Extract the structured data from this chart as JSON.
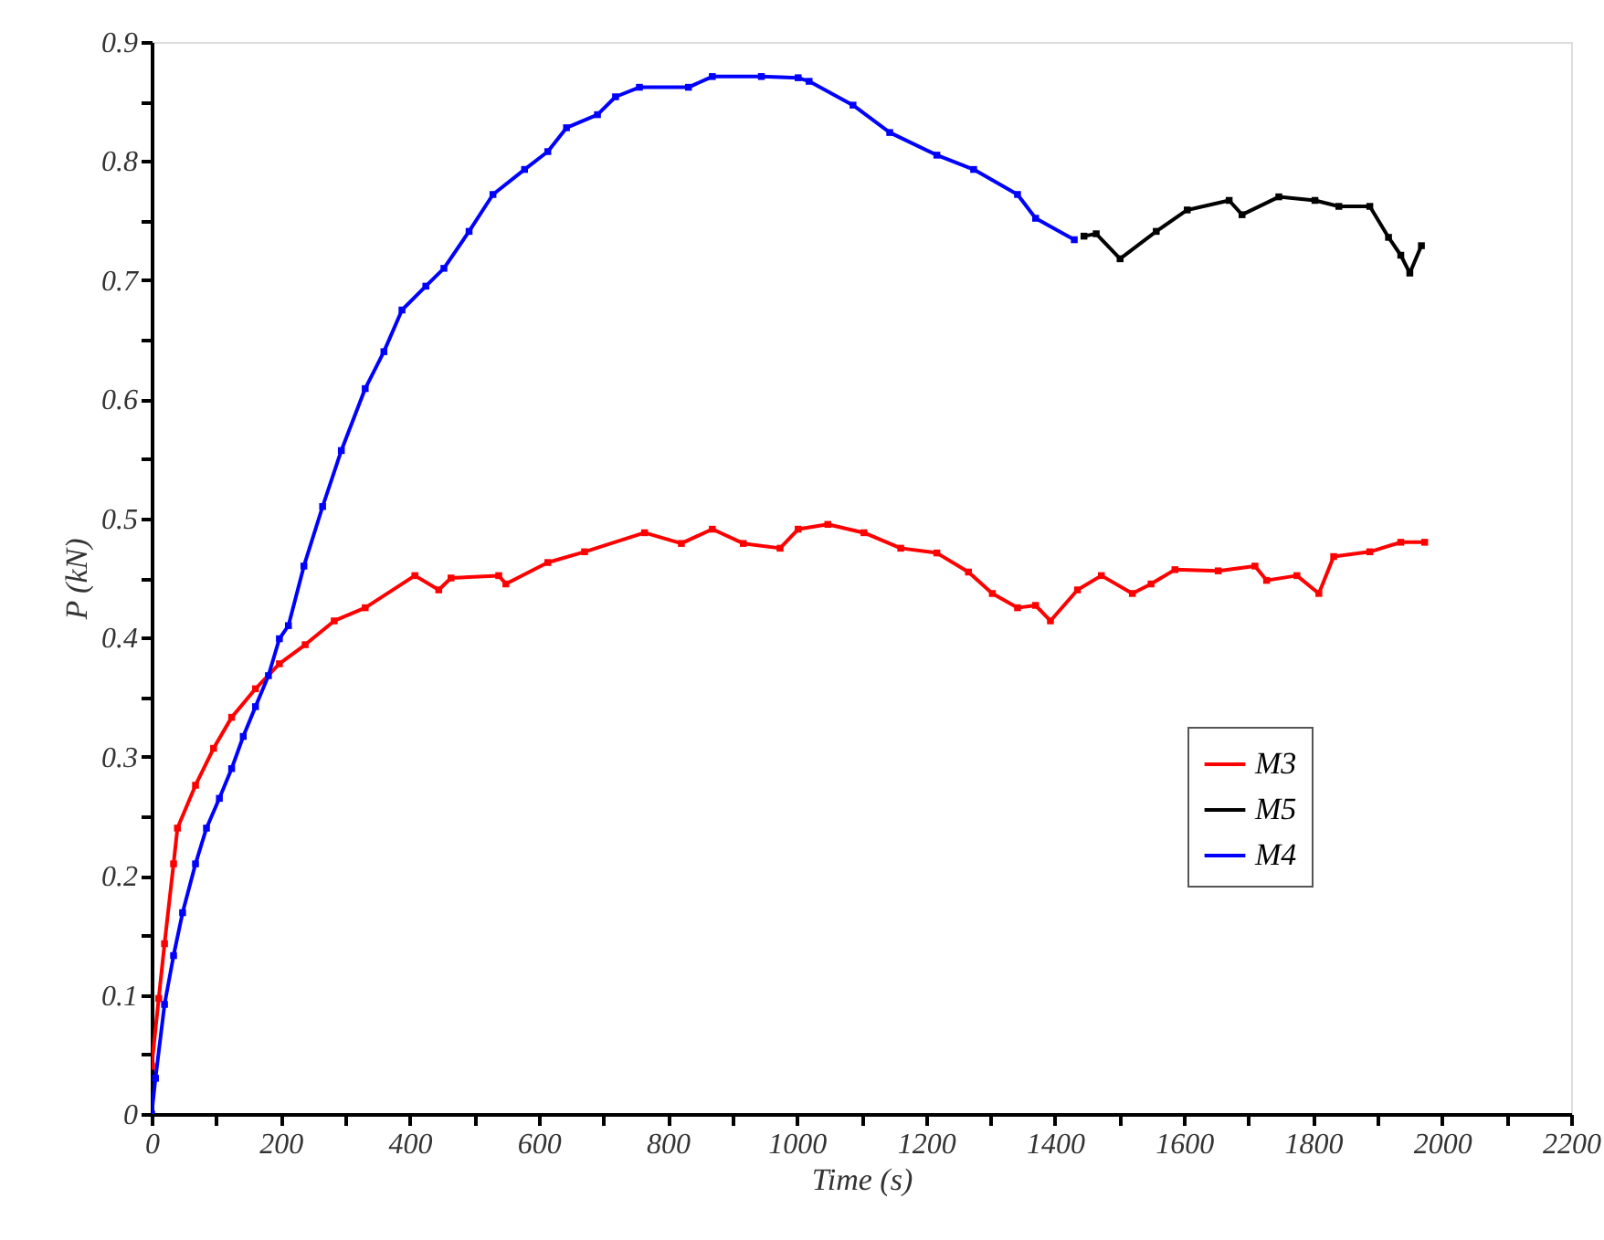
{
  "chart_data": {
    "type": "line",
    "xlabel": "Time (s)",
    "ylabel": "P (kN)",
    "xlim": [
      0,
      2200
    ],
    "ylim": [
      0,
      0.9
    ],
    "xticks": [
      0,
      {
        "value": 100,
        "label": null
      },
      200,
      {
        "value": 300,
        "label": null
      },
      400,
      {
        "value": 500,
        "label": null
      },
      600,
      {
        "value": 700,
        "label": null
      },
      800,
      {
        "value": 900,
        "label": null
      },
      1000,
      {
        "value": 1100,
        "label": null
      },
      1200,
      {
        "value": 1300,
        "label": null
      },
      1400,
      {
        "value": 1500,
        "label": null
      },
      1600,
      {
        "value": 1700,
        "label": null
      },
      1800,
      {
        "value": 1900,
        "label": null
      },
      2000,
      {
        "value": 2100,
        "label": null
      },
      2200
    ],
    "yticks": [
      0,
      {
        "value": 0.05,
        "label": null
      },
      0.1,
      {
        "value": 0.15,
        "label": null
      },
      0.2,
      {
        "value": 0.25,
        "label": null
      },
      0.3,
      {
        "value": 0.35,
        "label": null
      },
      0.4,
      {
        "value": 0.45,
        "label": null
      },
      0.5,
      {
        "value": 0.55,
        "label": null
      },
      0.6,
      {
        "value": 0.65,
        "label": null
      },
      0.7,
      {
        "value": 0.75,
        "label": null
      },
      0.8,
      {
        "value": 0.85,
        "label": null
      },
      0.9
    ],
    "grid": false,
    "legend": "right",
    "marker": "square",
    "line_style": "solid",
    "series": [
      {
        "name": "M3",
        "color": "#ff0000",
        "x": [
          0,
          11,
          20,
          34,
          40,
          68,
          96,
          124,
          161,
          198,
          238,
          283,
          331,
          408,
          445,
          464,
          538,
          549,
          614,
          671,
          764,
          821,
          869,
          917,
          974,
          1002,
          1048,
          1104,
          1161,
          1217,
          1266,
          1303,
          1342,
          1370,
          1393,
          1435,
          1472,
          1520,
          1549,
          1586,
          1653,
          1710,
          1728,
          1775,
          1809,
          1832,
          1888,
          1936,
          1973
        ],
        "values": [
          0.04,
          0.097,
          0.143,
          0.21,
          0.24,
          0.276,
          0.307,
          0.333,
          0.357,
          0.378,
          0.394,
          0.414,
          0.425,
          0.452,
          0.44,
          0.45,
          0.452,
          0.445,
          0.463,
          0.472,
          0.488,
          0.479,
          0.491,
          0.479,
          0.475,
          0.491,
          0.495,
          0.488,
          0.475,
          0.471,
          0.455,
          0.437,
          0.425,
          0.427,
          0.414,
          0.44,
          0.452,
          0.437,
          0.445,
          0.457,
          0.456,
          0.46,
          0.448,
          0.452,
          0.437,
          0.468,
          0.472,
          0.48,
          0.48
        ]
      },
      {
        "name": "M5",
        "color": "#000000",
        "x": [
          1445,
          1464,
          1501,
          1557,
          1605,
          1670,
          1690,
          1747,
          1803,
          1840,
          1888,
          1917,
          1936,
          1950,
          1968
        ],
        "values": [
          0.737,
          0.739,
          0.718,
          0.741,
          0.759,
          0.767,
          0.755,
          0.77,
          0.767,
          0.762,
          0.762,
          0.736,
          0.721,
          0.706,
          0.729
        ]
      },
      {
        "name": "M4",
        "color": "#0000ff",
        "x": [
          0,
          6,
          20,
          34,
          48,
          68,
          85,
          105,
          124,
          142,
          161,
          181,
          198,
          212,
          236,
          265,
          294,
          331,
          360,
          388,
          425,
          453,
          492,
          529,
          578,
          614,
          643,
          691,
          719,
          756,
          832,
          869,
          945,
          1002,
          1019,
          1087,
          1144,
          1217,
          1274,
          1342,
          1370,
          1430
        ],
        "values": [
          0,
          0.03,
          0.092,
          0.133,
          0.169,
          0.21,
          0.24,
          0.265,
          0.29,
          0.317,
          0.342,
          0.368,
          0.399,
          0.41,
          0.46,
          0.51,
          0.557,
          0.609,
          0.64,
          0.675,
          0.695,
          0.71,
          0.741,
          0.772,
          0.793,
          0.808,
          0.828,
          0.839,
          0.854,
          0.862,
          0.862,
          0.871,
          0.871,
          0.87,
          0.867,
          0.847,
          0.824,
          0.805,
          0.793,
          0.772,
          0.752,
          0.734
        ]
      }
    ]
  }
}
